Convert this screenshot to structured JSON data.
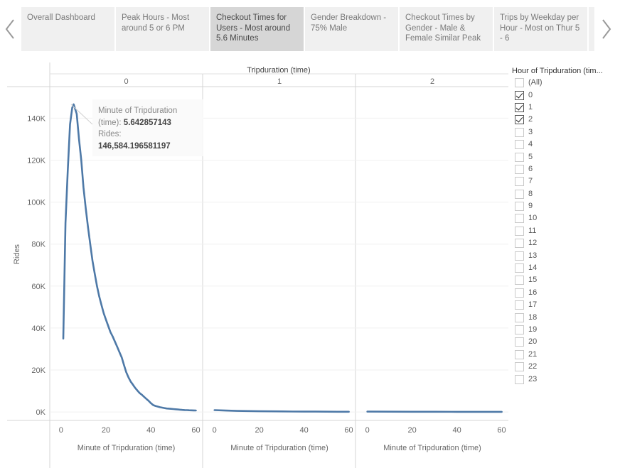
{
  "story": {
    "prev_icon": "chevron-left-icon",
    "next_icon": "chevron-right-icon",
    "points": [
      {
        "label": "Overall Dashboard",
        "active": false
      },
      {
        "label": "Peak Hours - Most around 5 or 6 PM",
        "active": false
      },
      {
        "label": "Checkout Times for Users - Most around 5.6 Minutes",
        "active": true
      },
      {
        "label": "Gender Breakdown - 75% Male",
        "active": false
      },
      {
        "label": "Checkout Times by Gender - Male & Female Similar Peak",
        "active": false
      },
      {
        "label": "Trips by Weekday per Hour - Most on Thur 5 - 6",
        "active": false
      }
    ]
  },
  "tooltip": {
    "field1_name": "Minute of Tripduration (time):",
    "field1_value": "5.642857143",
    "field2_name": "Rides:",
    "field2_value": "146,584.196581197"
  },
  "filter": {
    "title": "Hour of Tripduration (tim...",
    "items": [
      {
        "label": "(All)",
        "checked": false
      },
      {
        "label": "0",
        "checked": true
      },
      {
        "label": "1",
        "checked": true
      },
      {
        "label": "2",
        "checked": true
      },
      {
        "label": "3",
        "checked": false
      },
      {
        "label": "4",
        "checked": false
      },
      {
        "label": "5",
        "checked": false
      },
      {
        "label": "6",
        "checked": false
      },
      {
        "label": "7",
        "checked": false
      },
      {
        "label": "8",
        "checked": false
      },
      {
        "label": "9",
        "checked": false
      },
      {
        "label": "10",
        "checked": false
      },
      {
        "label": "11",
        "checked": false
      },
      {
        "label": "12",
        "checked": false
      },
      {
        "label": "13",
        "checked": false
      },
      {
        "label": "14",
        "checked": false
      },
      {
        "label": "15",
        "checked": false
      },
      {
        "label": "16",
        "checked": false
      },
      {
        "label": "17",
        "checked": false
      },
      {
        "label": "18",
        "checked": false
      },
      {
        "label": "19",
        "checked": false
      },
      {
        "label": "20",
        "checked": false
      },
      {
        "label": "21",
        "checked": false
      },
      {
        "label": "22",
        "checked": false
      },
      {
        "label": "23",
        "checked": false
      }
    ]
  },
  "chart_data": {
    "type": "line",
    "column_header": "Tripduration (time)",
    "ylabel": "Rides",
    "xlabel": "Minute of Tripduration (time)",
    "ylim": [
      -4000,
      155000
    ],
    "xlim": [
      -5,
      63
    ],
    "yticks": [
      0,
      20000,
      40000,
      60000,
      80000,
      100000,
      120000,
      140000
    ],
    "ytick_labels": [
      "0K",
      "20K",
      "40K",
      "60K",
      "80K",
      "100K",
      "120K",
      "140K"
    ],
    "xticks": [
      0,
      20,
      40,
      60
    ],
    "xtick_labels": [
      "0",
      "20",
      "40",
      "60"
    ],
    "line_color": "#4e79a7",
    "grid": true,
    "panels": [
      {
        "name": "0",
        "points": [
          [
            1,
            35000
          ],
          [
            2,
            90000
          ],
          [
            3,
            115000
          ],
          [
            4,
            137000
          ],
          [
            5,
            145000
          ],
          [
            5.64,
            146584
          ],
          [
            7,
            142000
          ],
          [
            8,
            130000
          ],
          [
            9,
            120000
          ],
          [
            10,
            107000
          ],
          [
            11,
            97000
          ],
          [
            12,
            88000
          ],
          [
            13,
            80000
          ],
          [
            14,
            72000
          ],
          [
            15,
            66000
          ],
          [
            16,
            60000
          ],
          [
            17,
            55000
          ],
          [
            18,
            51000
          ],
          [
            19,
            47000
          ],
          [
            20,
            44000
          ],
          [
            21,
            41000
          ],
          [
            22,
            38000
          ],
          [
            23,
            36000
          ],
          [
            24,
            33500
          ],
          [
            25,
            31000
          ],
          [
            26,
            28500
          ],
          [
            27,
            26000
          ],
          [
            28,
            22500
          ],
          [
            29,
            19000
          ],
          [
            30,
            16500
          ],
          [
            31,
            14500
          ],
          [
            32,
            13000
          ],
          [
            33,
            11500
          ],
          [
            34,
            10200
          ],
          [
            35,
            9000
          ],
          [
            36,
            8200
          ],
          [
            37,
            7200
          ],
          [
            38,
            6200
          ],
          [
            39,
            5300
          ],
          [
            40,
            4200
          ],
          [
            41,
            3300
          ],
          [
            42,
            2900
          ],
          [
            43,
            2600
          ],
          [
            44,
            2300
          ],
          [
            45,
            2100
          ],
          [
            46,
            1900
          ],
          [
            47,
            1700
          ],
          [
            48,
            1600
          ],
          [
            49,
            1500
          ],
          [
            50,
            1400
          ],
          [
            51,
            1300
          ],
          [
            52,
            1200
          ],
          [
            53,
            1100
          ],
          [
            54,
            1000
          ],
          [
            55,
            950
          ],
          [
            56,
            900
          ],
          [
            57,
            850
          ],
          [
            58,
            800
          ],
          [
            59,
            760
          ],
          [
            60,
            720
          ]
        ]
      },
      {
        "name": "1",
        "points": [
          [
            0,
            900
          ],
          [
            5,
            700
          ],
          [
            10,
            550
          ],
          [
            15,
            450
          ],
          [
            20,
            380
          ],
          [
            25,
            320
          ],
          [
            30,
            280
          ],
          [
            35,
            240
          ],
          [
            40,
            210
          ],
          [
            45,
            180
          ],
          [
            50,
            160
          ],
          [
            55,
            140
          ],
          [
            60,
            120
          ]
        ]
      },
      {
        "name": "2",
        "points": [
          [
            0,
            180
          ],
          [
            10,
            160
          ],
          [
            20,
            140
          ],
          [
            30,
            120
          ],
          [
            40,
            100
          ],
          [
            50,
            90
          ],
          [
            60,
            80
          ]
        ]
      }
    ]
  }
}
